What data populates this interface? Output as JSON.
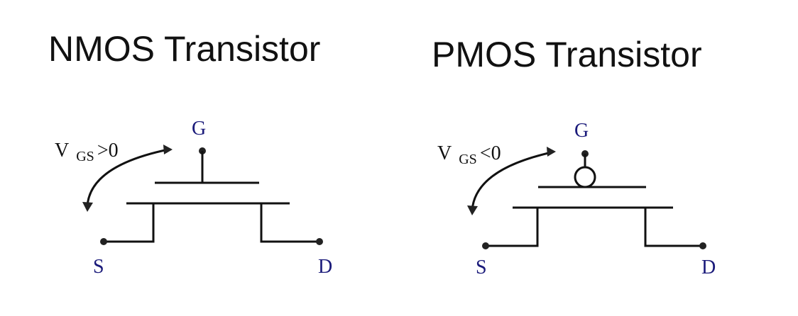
{
  "nmos": {
    "title": "NMOS Transistor",
    "gate_label": "G",
    "source_label": "S",
    "drain_label": "D",
    "vgs": {
      "symbol": "V",
      "subscript": "GS",
      "condition": ">0"
    }
  },
  "pmos": {
    "title": "PMOS Transistor",
    "gate_label": "G",
    "source_label": "S",
    "drain_label": "D",
    "vgs": {
      "symbol": "V",
      "subscript": "GS",
      "condition": "<0"
    }
  }
}
